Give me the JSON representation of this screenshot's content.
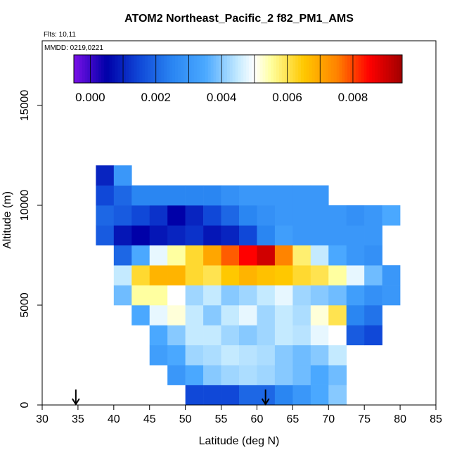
{
  "chart_data": {
    "type": "heatmap",
    "title": "ATOM2 Northeast_Pacific_2 f82_PM1_AMS",
    "notes": [
      "Flts: 10,11",
      "MMDD: 0219,0221"
    ],
    "x_label": "Latitude (deg N)",
    "y_label": "Altitude (m)",
    "xlim": [
      30,
      85
    ],
    "xticks": [
      30,
      35,
      40,
      45,
      50,
      55,
      60,
      65,
      70,
      75,
      80,
      85
    ],
    "ylim": [
      0,
      18240
    ],
    "yticks": [
      0,
      5000,
      10000,
      15000
    ],
    "x_bins": [
      35,
      37.5,
      40,
      42.5,
      45,
      47.5,
      50,
      52.5,
      55,
      57.5,
      60,
      62.5,
      65,
      67.5,
      70,
      72.5,
      75,
      77.5,
      80
    ],
    "y_bins": [
      0,
      1000,
      2000,
      3000,
      4000,
      5000,
      6000,
      7000,
      8000,
      9000,
      10000,
      11000,
      12000
    ],
    "values": [
      [
        null,
        null,
        null,
        null,
        null,
        null,
        0.0015,
        0.0015,
        0.0015,
        0.002,
        0.002,
        0.0025,
        0.003,
        0.0035,
        0.004,
        null,
        null,
        null
      ],
      [
        null,
        null,
        null,
        null,
        null,
        0.003,
        0.0035,
        0.004,
        0.0042,
        0.0043,
        0.0042,
        0.004,
        0.0038,
        0.0035,
        0.0038,
        null,
        null,
        null
      ],
      [
        null,
        null,
        null,
        null,
        0.0032,
        0.0035,
        0.0042,
        0.0043,
        0.0045,
        0.0044,
        0.0043,
        0.004,
        0.0038,
        0.004,
        0.0045,
        null,
        null,
        null
      ],
      [
        null,
        null,
        null,
        null,
        0.0035,
        0.004,
        0.0045,
        0.0045,
        0.0042,
        0.004,
        0.0042,
        0.0045,
        0.0044,
        0.0048,
        0.005,
        0.0018,
        0.0015,
        null
      ],
      [
        null,
        null,
        null,
        0.0035,
        0.0048,
        0.0052,
        0.0045,
        0.004,
        0.0045,
        0.0048,
        0.0042,
        0.0045,
        0.0043,
        0.0052,
        0.006,
        0.0025,
        0.0022,
        null
      ],
      [
        null,
        null,
        0.0038,
        0.0055,
        0.0055,
        0.005,
        0.0042,
        0.0045,
        0.004,
        0.0042,
        0.0045,
        0.0048,
        0.0042,
        0.004,
        0.0038,
        0.0032,
        0.0028,
        0.003
      ],
      [
        null,
        null,
        0.0045,
        0.0062,
        0.0068,
        0.0068,
        0.0062,
        0.006,
        0.0065,
        0.0068,
        0.0066,
        0.0065,
        0.0062,
        0.006,
        0.0055,
        0.0048,
        0.0038,
        0.003
      ],
      [
        null,
        null,
        0.002,
        0.0035,
        0.0048,
        0.0055,
        0.0062,
        0.007,
        0.0078,
        0.0085,
        0.009,
        0.0075,
        0.0058,
        0.0045,
        0.0035,
        0.003,
        0.0028,
        null
      ],
      [
        null,
        0.0018,
        0.0008,
        0.0005,
        0.0008,
        0.001,
        0.0012,
        0.0008,
        0.001,
        0.0015,
        0.0025,
        0.0032,
        0.003,
        0.003,
        0.003,
        0.003,
        0.003,
        null
      ],
      [
        null,
        0.002,
        0.0018,
        0.0015,
        0.0012,
        0.0005,
        0.001,
        0.0015,
        0.002,
        0.0025,
        0.0028,
        0.003,
        0.003,
        0.003,
        0.003,
        0.0028,
        0.003,
        0.0035
      ],
      [
        null,
        0.0015,
        0.002,
        0.0025,
        0.0025,
        0.0025,
        0.0025,
        0.0025,
        0.0028,
        0.003,
        0.003,
        0.003,
        0.003,
        0.003,
        null,
        null,
        null,
        null
      ],
      [
        null,
        0.001,
        0.003,
        null,
        null,
        null,
        null,
        null,
        null,
        null,
        null,
        null,
        null,
        null,
        null,
        null,
        null,
        null
      ]
    ],
    "colorscale": {
      "values": [
        -0.0005,
        0.0005,
        0.0015,
        0.0025,
        0.0035,
        0.0045,
        0.005,
        0.0055,
        0.0065,
        0.0075,
        0.0085,
        0.0095
      ],
      "colors": [
        "#7a10e8",
        "#0000a8",
        "#1048d8",
        "#2a86f2",
        "#4aa8ff",
        "#c4eaff",
        "#ffffff",
        "#ffffa0",
        "#ffc800",
        "#ff8400",
        "#ff0000",
        "#a00000"
      ]
    },
    "colorbar_lim": [
      -0.0005,
      0.0095
    ],
    "colorbar_ticks": [
      {
        "value": 0,
        "label": "0.000"
      },
      {
        "value": 0.002,
        "label": "0.002"
      },
      {
        "value": 0.004,
        "label": "0.004"
      },
      {
        "value": 0.006,
        "label": "0.006"
      },
      {
        "value": 0.008,
        "label": "0.008"
      }
    ],
    "arrows_x": [
      34.7,
      61.2
    ]
  }
}
